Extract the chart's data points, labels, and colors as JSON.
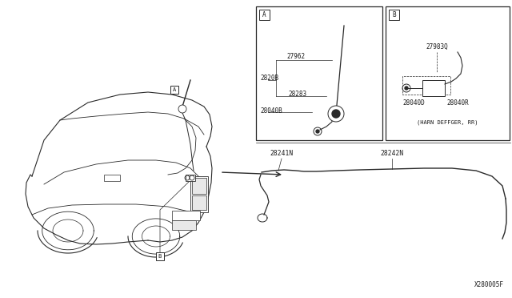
{
  "bg_color": "#ffffff",
  "line_color": "#2a2a2a",
  "text_color": "#1a1a1a",
  "part_number_bottom": "X280005F",
  "box_A_parts": [
    "27962",
    "2820B",
    "28283",
    "28040B"
  ],
  "box_B_parts": [
    "27983Q",
    "28040D",
    "28040R",
    "(HARN DEFFGER, RR)"
  ],
  "cable_parts": [
    "28241N",
    "28242N"
  ],
  "figsize": [
    6.4,
    3.72
  ],
  "dpi": 100
}
